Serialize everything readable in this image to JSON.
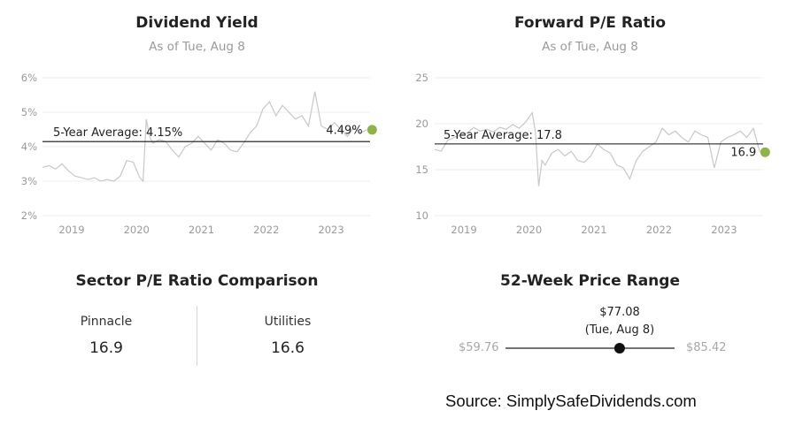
{
  "chart_data": [
    {
      "type": "line",
      "title": "Dividend Yield",
      "subtitle": "As of Tue, Aug 8",
      "y_ticks": [
        "6%",
        "5%",
        "4%",
        "3%",
        "2%"
      ],
      "y_tick_values": [
        6,
        5,
        4,
        3,
        2
      ],
      "ylim": [
        2,
        6
      ],
      "x_ticks": [
        "2019",
        "2020",
        "2021",
        "2022",
        "2023"
      ],
      "xlim": [
        2018.6,
        2023.65
      ],
      "average": 4.15,
      "average_label": "5-Year Average: 4.15%",
      "current": 4.49,
      "current_label": "4.49%",
      "series_color": "#c8c8c8",
      "marker_color": "#8db543",
      "grid": true,
      "x": [
        2018.6,
        2018.7,
        2018.8,
        2018.9,
        2019.0,
        2019.1,
        2019.2,
        2019.3,
        2019.4,
        2019.5,
        2019.6,
        2019.7,
        2019.8,
        2019.9,
        2020.0,
        2020.1,
        2020.15,
        2020.2,
        2020.25,
        2020.3,
        2020.4,
        2020.5,
        2020.6,
        2020.7,
        2020.8,
        2020.9,
        2021.0,
        2021.1,
        2021.2,
        2021.3,
        2021.4,
        2021.5,
        2021.6,
        2021.7,
        2021.8,
        2021.9,
        2022.0,
        2022.1,
        2022.2,
        2022.3,
        2022.4,
        2022.5,
        2022.6,
        2022.7,
        2022.75,
        2022.8,
        2022.9,
        2023.0,
        2023.1,
        2023.2,
        2023.3,
        2023.4,
        2023.5,
        2023.6
      ],
      "y": [
        3.4,
        3.45,
        3.35,
        3.5,
        3.3,
        3.15,
        3.1,
        3.05,
        3.1,
        3.0,
        3.05,
        3.0,
        3.15,
        3.6,
        3.55,
        3.1,
        3.0,
        4.8,
        4.3,
        4.1,
        4.2,
        4.15,
        3.9,
        3.7,
        4.0,
        4.1,
        4.3,
        4.1,
        3.9,
        4.2,
        4.1,
        3.9,
        3.85,
        4.1,
        4.4,
        4.6,
        5.1,
        5.3,
        4.9,
        5.2,
        5.0,
        4.8,
        4.9,
        4.6,
        5.1,
        5.6,
        4.6,
        4.5,
        4.7,
        4.5,
        4.3,
        4.55,
        4.4,
        4.49
      ]
    },
    {
      "type": "line",
      "title": "Forward P/E Ratio",
      "subtitle": "As of Tue, Aug 8",
      "y_ticks": [
        "25",
        "20",
        "15",
        "10"
      ],
      "y_tick_values": [
        25,
        20,
        15,
        10
      ],
      "ylim": [
        10,
        25
      ],
      "x_ticks": [
        "2019",
        "2020",
        "2021",
        "2022",
        "2023"
      ],
      "xlim": [
        2018.6,
        2023.65
      ],
      "average": 17.8,
      "average_label": "5-Year Average: 17.8",
      "current": 16.9,
      "current_label": "16.9",
      "series_color": "#c8c8c8",
      "marker_color": "#8db543",
      "grid": true,
      "x": [
        2018.6,
        2018.7,
        2018.8,
        2018.9,
        2019.0,
        2019.1,
        2019.2,
        2019.3,
        2019.4,
        2019.5,
        2019.6,
        2019.7,
        2019.8,
        2019.9,
        2020.0,
        2020.1,
        2020.15,
        2020.2,
        2020.25,
        2020.3,
        2020.4,
        2020.5,
        2020.6,
        2020.7,
        2020.8,
        2020.9,
        2021.0,
        2021.1,
        2021.2,
        2021.3,
        2021.4,
        2021.5,
        2021.6,
        2021.7,
        2021.8,
        2021.9,
        2022.0,
        2022.1,
        2022.2,
        2022.3,
        2022.4,
        2022.5,
        2022.6,
        2022.7,
        2022.8,
        2022.9,
        2023.0,
        2023.1,
        2023.2,
        2023.3,
        2023.4,
        2023.5,
        2023.6
      ],
      "y": [
        17.2,
        17.0,
        18.2,
        18.5,
        18.8,
        19.0,
        19.6,
        19.2,
        19.4,
        19.1,
        19.6,
        19.4,
        19.9,
        19.5,
        20.2,
        21.2,
        19.0,
        13.2,
        16.0,
        15.5,
        16.8,
        17.2,
        16.5,
        17.0,
        16.0,
        15.8,
        16.5,
        17.8,
        17.2,
        16.8,
        15.5,
        15.2,
        14.0,
        16.0,
        17.0,
        17.5,
        18.0,
        19.5,
        18.8,
        19.2,
        18.5,
        18.0,
        19.2,
        18.8,
        18.5,
        15.2,
        18.0,
        18.5,
        18.8,
        19.2,
        18.5,
        19.5,
        16.9
      ]
    }
  ],
  "sector": {
    "title": "Sector P/E Ratio Comparison",
    "items": [
      {
        "name": "Pinnacle",
        "value": "16.9"
      },
      {
        "name": "Utilities",
        "value": "16.6"
      }
    ]
  },
  "price_range": {
    "title": "52-Week Price Range",
    "current": "$77.08",
    "date": "(Tue, Aug 8)",
    "low": "$59.76",
    "high": "$85.42",
    "low_value": 59.76,
    "high_value": 85.42,
    "current_value": 77.08
  },
  "source": "Source: SimplySafeDividends.com"
}
